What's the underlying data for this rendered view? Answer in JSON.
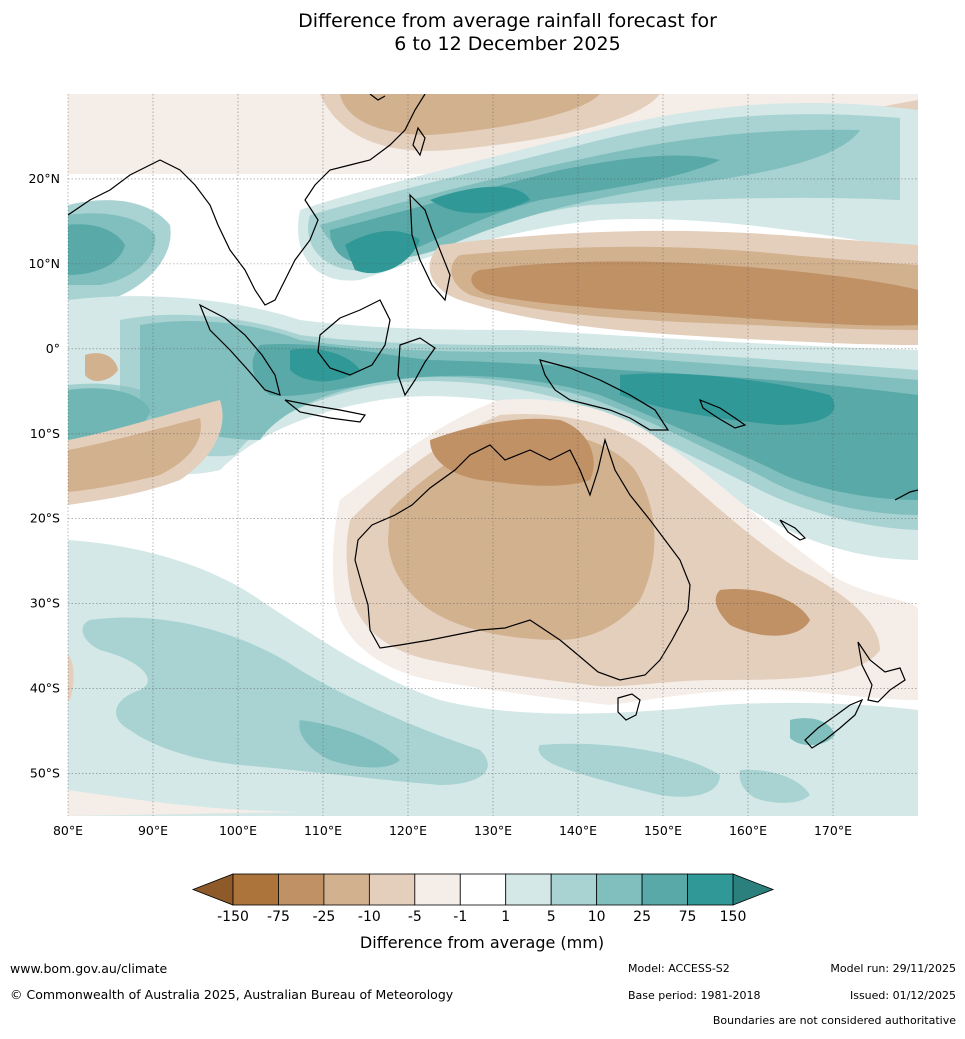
{
  "title": {
    "line1": "Difference from average rainfall forecast for",
    "line2": "6 to 12 December 2025"
  },
  "map": {
    "lat_ticks": [
      {
        "lat": 20,
        "label": "20°N"
      },
      {
        "lat": 10,
        "label": "10°N"
      },
      {
        "lat": 0,
        "label": "0°"
      },
      {
        "lat": -10,
        "label": "10°S"
      },
      {
        "lat": -20,
        "label": "20°S"
      },
      {
        "lat": -30,
        "label": "30°S"
      },
      {
        "lat": -40,
        "label": "40°S"
      },
      {
        "lat": -50,
        "label": "50°S"
      }
    ],
    "lon_ticks": [
      {
        "lon": 80,
        "label": "80°E"
      },
      {
        "lon": 90,
        "label": "90°E"
      },
      {
        "lon": 100,
        "label": "100°E"
      },
      {
        "lon": 110,
        "label": "110°E"
      },
      {
        "lon": 120,
        "label": "120°E"
      },
      {
        "lon": 130,
        "label": "130°E"
      },
      {
        "lon": 140,
        "label": "140°E"
      },
      {
        "lon": 150,
        "label": "150°E"
      },
      {
        "lon": 160,
        "label": "160°E"
      },
      {
        "lon": 170,
        "label": "170°E"
      }
    ],
    "extent": {
      "lon_min": 80,
      "lon_max": 180,
      "lat_min": -55,
      "lat_max": 30
    }
  },
  "colorbar": {
    "title": "Difference from average (mm)",
    "labels": [
      "-150",
      "-75",
      "-25",
      "-10",
      "-5",
      "-1",
      "1",
      "5",
      "10",
      "25",
      "75",
      "150"
    ],
    "colors": [
      "#ac733b",
      "#c19166",
      "#d2b18f",
      "#e4cfbd",
      "#f4ede8",
      "#ffffff",
      "#d3e8e7",
      "#a8d3d2",
      "#81bfbe",
      "#58a9a8",
      "#309896"
    ],
    "extend_low_color": "#8f5a2a",
    "extend_high_color": "#2b7f7d"
  },
  "footer": {
    "website": "www.bom.gov.au/climate",
    "copyright": "© Commonwealth of Australia 2025, Australian Bureau of Meteorology",
    "model": "Model: ACCESS-S2",
    "base_period": "Base period: 1981-2018",
    "model_run": "Model run: 29/11/2025",
    "issued": "Issued: 01/12/2025",
    "disclaimer": "Boundaries are not considered authoritative"
  }
}
